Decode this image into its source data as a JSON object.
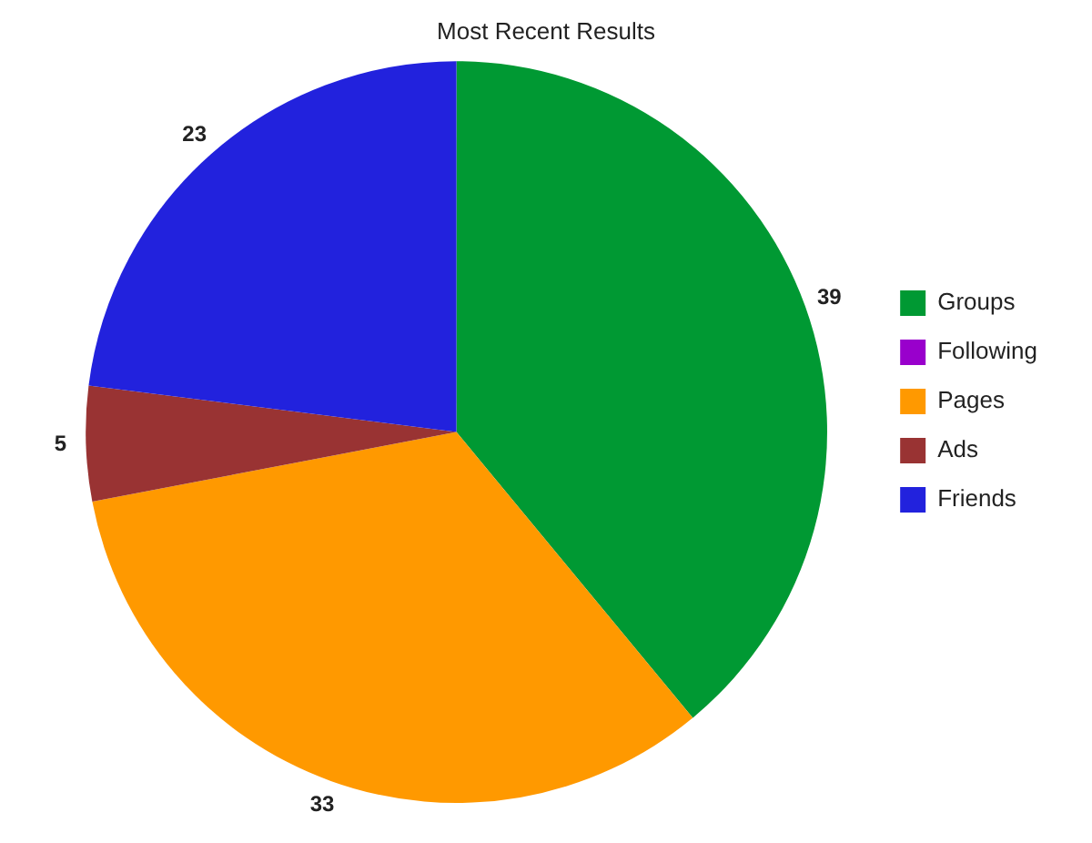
{
  "chart_data": {
    "type": "pie",
    "title": "Most Recent Results",
    "categories": [
      "Groups",
      "Following",
      "Pages",
      "Ads",
      "Friends"
    ],
    "values": [
      39,
      0,
      33,
      5,
      23
    ],
    "colors": [
      "#009933",
      "#9900cc",
      "#ff9900",
      "#993333",
      "#2222dd"
    ],
    "value_labels": [
      "39",
      null,
      "33",
      "5",
      "23"
    ],
    "legend": "right"
  }
}
